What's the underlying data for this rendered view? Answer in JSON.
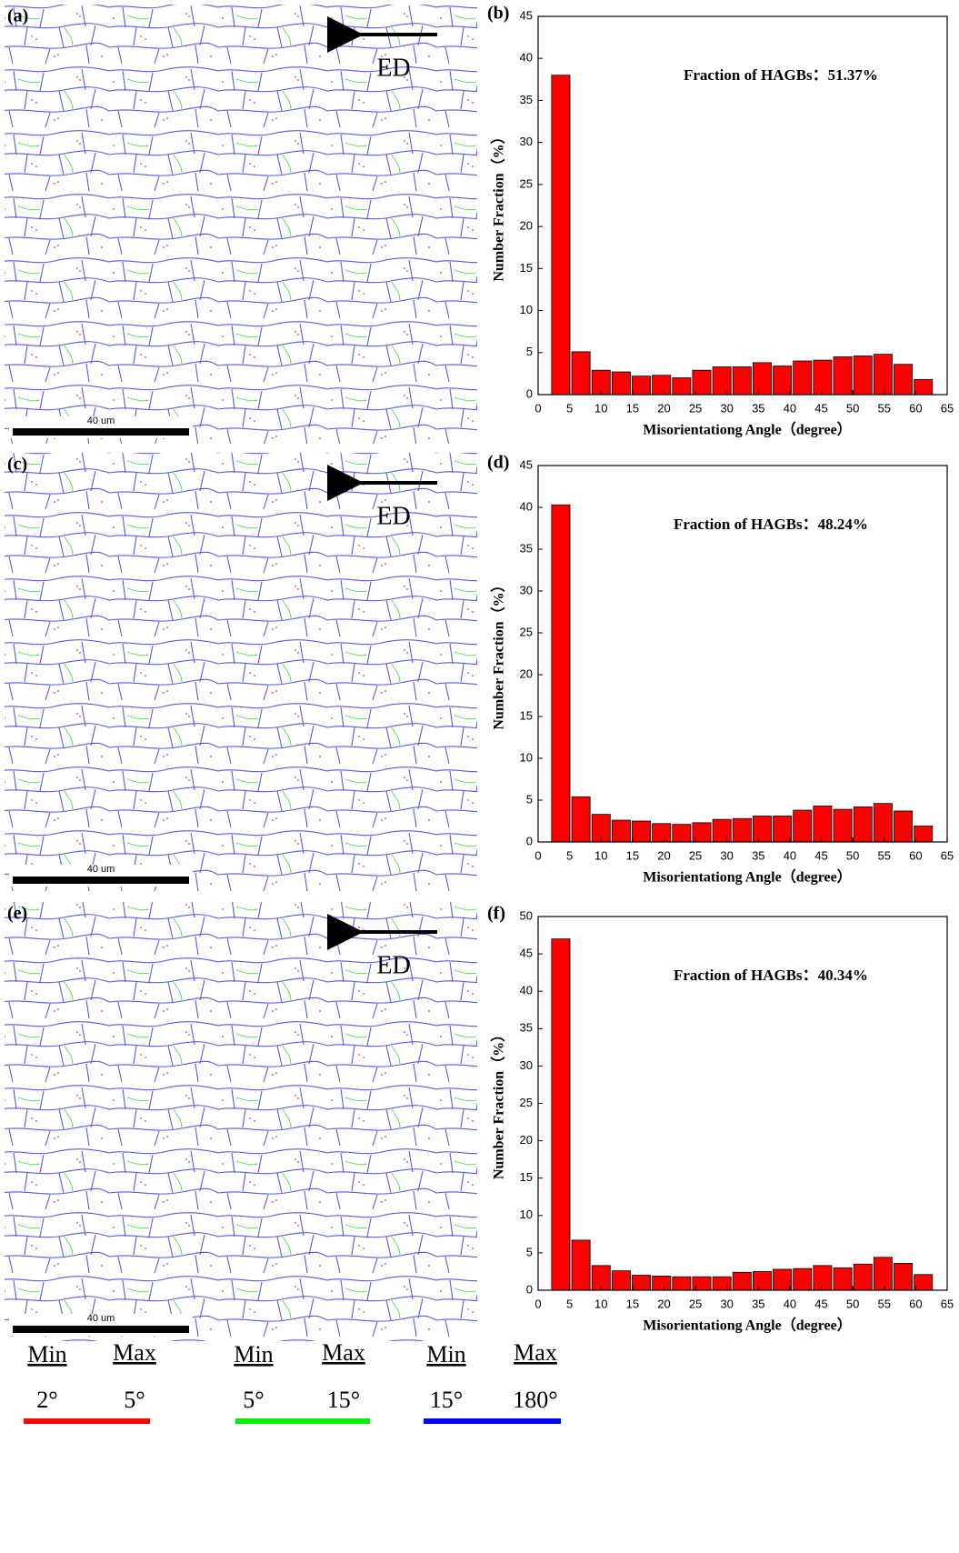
{
  "maps": [
    {
      "label": "(a)",
      "direction": "ED",
      "scale_bar": "40 um"
    },
    {
      "label": "(c)",
      "direction": "ED",
      "scale_bar": "40 um"
    },
    {
      "label": "(e)",
      "direction": "ED",
      "scale_bar": "40 um"
    }
  ],
  "chart_data": [
    {
      "type": "histogram",
      "label": "(b)",
      "annotation": "Fraction of HAGBs：51.37%",
      "x_label": "Misorientationg Angle（degree）",
      "y_label": "Number Fraction（%）",
      "color": "#ff0000",
      "bins": [
        2,
        5.2,
        8.4,
        11.6,
        14.8,
        18,
        21.2,
        24.4,
        27.6,
        30.8,
        34,
        37.2,
        40.4,
        43.6,
        46.8,
        50,
        53.2,
        56.4,
        59.6,
        62.8
      ],
      "values": [
        38,
        5.1,
        2.9,
        2.7,
        2.2,
        2.3,
        2.0,
        2.9,
        3.3,
        3.3,
        3.8,
        3.4,
        4.0,
        4.1,
        4.5,
        4.6,
        4.8,
        3.6,
        1.8
      ],
      "xlim": [
        0,
        65
      ],
      "xticks": [
        0,
        5,
        10,
        15,
        20,
        25,
        30,
        35,
        40,
        45,
        50,
        55,
        60,
        65
      ],
      "ylim": [
        0,
        45
      ],
      "yticks": [
        0,
        5,
        10,
        15,
        20,
        25,
        30,
        35,
        40,
        45
      ]
    },
    {
      "type": "histogram",
      "label": "(d)",
      "annotation": "Fraction of HAGBs：48.24%",
      "x_label": "Misorientationg Angle（degree）",
      "y_label": "Number Fraction（%）",
      "color": "#ff0000",
      "bins": [
        2,
        5.2,
        8.4,
        11.6,
        14.8,
        18,
        21.2,
        24.4,
        27.6,
        30.8,
        34,
        37.2,
        40.4,
        43.6,
        46.8,
        50,
        53.2,
        56.4,
        59.6,
        62.8
      ],
      "values": [
        40.3,
        5.4,
        3.3,
        2.6,
        2.5,
        2.2,
        2.1,
        2.3,
        2.7,
        2.8,
        3.1,
        3.1,
        3.8,
        4.3,
        3.9,
        4.2,
        4.6,
        3.7,
        1.9
      ],
      "xlim": [
        0,
        65
      ],
      "xticks": [
        0,
        5,
        10,
        15,
        20,
        25,
        30,
        35,
        40,
        45,
        50,
        55,
        60,
        65
      ],
      "ylim": [
        0,
        45
      ],
      "yticks": [
        0,
        5,
        10,
        15,
        20,
        25,
        30,
        35,
        40,
        45
      ]
    },
    {
      "type": "histogram",
      "label": "(f)",
      "annotation": "Fraction of HAGBs：40.34%",
      "x_label": "Misorientationg Angle（degree）",
      "y_label": "Number Fraction（%）",
      "color": "#ff0000",
      "bins": [
        2,
        5.2,
        8.4,
        11.6,
        14.8,
        18,
        21.2,
        24.4,
        27.6,
        30.8,
        34,
        37.2,
        40.4,
        43.6,
        46.8,
        50,
        53.2,
        56.4,
        59.6,
        62.8
      ],
      "values": [
        47,
        6.7,
        3.3,
        2.6,
        2.0,
        1.9,
        1.8,
        1.8,
        1.8,
        2.4,
        2.5,
        2.8,
        2.9,
        3.3,
        3.0,
        3.5,
        4.4,
        3.6,
        2.1
      ],
      "xlim": [
        0,
        65
      ],
      "xticks": [
        0,
        5,
        10,
        15,
        20,
        25,
        30,
        35,
        40,
        45,
        50,
        55,
        60,
        65
      ],
      "ylim": [
        0,
        50
      ],
      "yticks": [
        0,
        5,
        10,
        15,
        20,
        25,
        30,
        35,
        40,
        45,
        50
      ]
    }
  ],
  "legend": [
    {
      "min_label": "Min",
      "max_label": "Max",
      "min": "2°",
      "max": "5°",
      "color": "#ff0000"
    },
    {
      "min_label": "Min",
      "max_label": "Max",
      "min": "5°",
      "max": "15°",
      "color": "#00ee00"
    },
    {
      "min_label": "Min",
      "max_label": "Max",
      "min": "15°",
      "max": "180°",
      "color": "#0000ff"
    }
  ]
}
